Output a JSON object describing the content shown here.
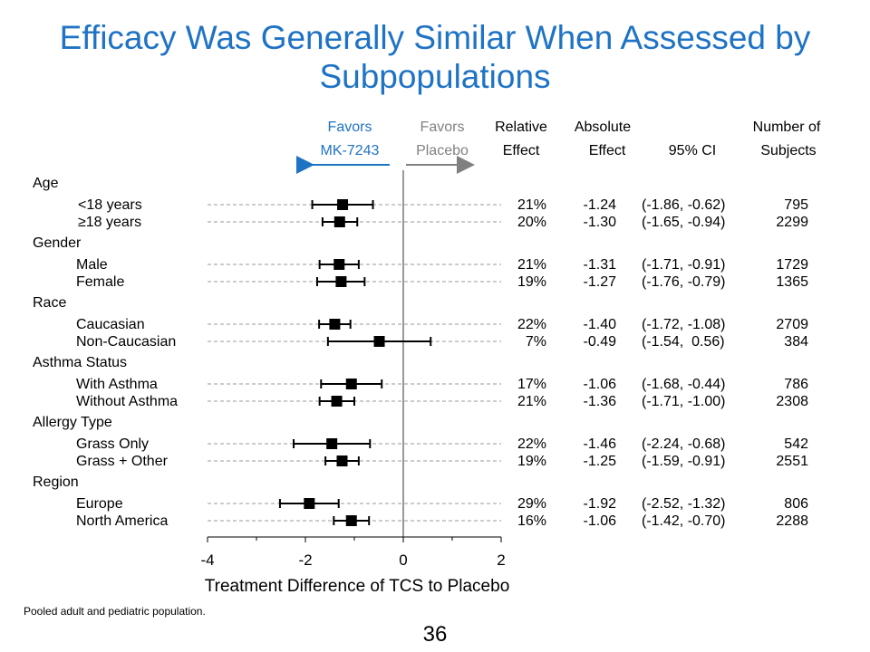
{
  "title": "Efficacy Was Generally Similar When Assessed by\nSubpopulations",
  "footnote": "Pooled adult and pediatric population.",
  "page_number": "36",
  "colors": {
    "title": "#1f73c4",
    "favors_left": "#1f73c4",
    "favors_right": "#808080",
    "marker": "#000000",
    "dashes": "#999999",
    "zero_line": "#999999"
  },
  "headers": {
    "favors_left": [
      "Favors",
      "MK-7243"
    ],
    "favors_right": [
      "Favors",
      "Placebo"
    ],
    "relative_effect": [
      "Relative",
      "Effect"
    ],
    "absolute_effect": [
      "Absolute",
      "Effect"
    ],
    "ci": "95% CI",
    "subjects": [
      "Number of",
      "Subjects"
    ]
  },
  "chart_data": {
    "type": "forest",
    "xlabel": "Treatment Difference of TCS to Placebo",
    "xlim": [
      -4,
      2
    ],
    "xticks": [
      -4,
      -2,
      0,
      2
    ],
    "reference_line": 0,
    "groups": [
      {
        "label": "Age",
        "rows": [
          {
            "label": "<18 years",
            "point": -1.24,
            "low": -1.86,
            "high": -0.62,
            "relative": "21%",
            "absolute": "-1.24",
            "ci": "(-1.86, -0.62)",
            "n": "795"
          },
          {
            "label": "≥18 years",
            "point": -1.3,
            "low": -1.65,
            "high": -0.94,
            "relative": "20%",
            "absolute": "-1.30",
            "ci": "(-1.65, -0.94)",
            "n": "2299"
          }
        ]
      },
      {
        "label": "Gender",
        "rows": [
          {
            "label": "Male",
            "point": -1.31,
            "low": -1.71,
            "high": -0.91,
            "relative": "21%",
            "absolute": "-1.31",
            "ci": "(-1.71, -0.91)",
            "n": "1729"
          },
          {
            "label": "Female",
            "point": -1.27,
            "low": -1.76,
            "high": -0.79,
            "relative": "19%",
            "absolute": "-1.27",
            "ci": "(-1.76, -0.79)",
            "n": "1365"
          }
        ]
      },
      {
        "label": "Race",
        "rows": [
          {
            "label": "Caucasian",
            "point": -1.4,
            "low": -1.72,
            "high": -1.08,
            "relative": "22%",
            "absolute": "-1.40",
            "ci": "(-1.72, -1.08)",
            "n": "2709"
          },
          {
            "label": "Non-Caucasian",
            "point": -0.49,
            "low": -1.54,
            "high": 0.56,
            "relative": "7%",
            "absolute": "-0.49",
            "ci": "(-1.54,  0.56)",
            "n": "384"
          }
        ]
      },
      {
        "label": "Asthma Status",
        "rows": [
          {
            "label": "With Asthma",
            "point": -1.06,
            "low": -1.68,
            "high": -0.44,
            "relative": "17%",
            "absolute": "-1.06",
            "ci": "(-1.68, -0.44)",
            "n": "786"
          },
          {
            "label": "Without Asthma",
            "point": -1.36,
            "low": -1.71,
            "high": -1.0,
            "relative": "21%",
            "absolute": "-1.36",
            "ci": "(-1.71, -1.00)",
            "n": "2308"
          }
        ]
      },
      {
        "label": "Allergy Type",
        "rows": [
          {
            "label": "Grass Only",
            "point": -1.46,
            "low": -2.24,
            "high": -0.68,
            "relative": "22%",
            "absolute": "-1.46",
            "ci": "(-2.24, -0.68)",
            "n": "542"
          },
          {
            "label": "Grass + Other",
            "point": -1.25,
            "low": -1.59,
            "high": -0.91,
            "relative": "19%",
            "absolute": "-1.25",
            "ci": "(-1.59, -0.91)",
            "n": "2551"
          }
        ]
      },
      {
        "label": "Region",
        "rows": [
          {
            "label": "Europe",
            "point": -1.92,
            "low": -2.52,
            "high": -1.32,
            "relative": "29%",
            "absolute": "-1.92",
            "ci": "(-2.52, -1.32)",
            "n": "806"
          },
          {
            "label": "North America",
            "point": -1.06,
            "low": -1.42,
            "high": -0.7,
            "relative": "16%",
            "absolute": "-1.06",
            "ci": "(-1.42, -0.70)",
            "n": "2288"
          }
        ]
      }
    ]
  }
}
